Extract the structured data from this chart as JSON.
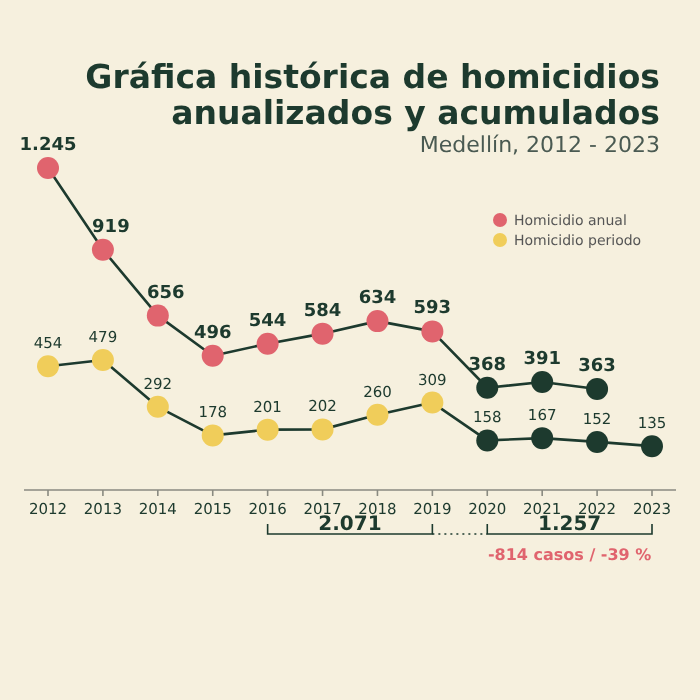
{
  "chart_data": {
    "type": "line",
    "title": "Gráfica histórica de homicidios anualizados y acumulados",
    "subtitle": "Medellín, 2012 - 2023",
    "categories": [
      "2012",
      "2013",
      "2014",
      "2015",
      "2016",
      "2017",
      "2018",
      "2019",
      "2020",
      "2021",
      "2022",
      "2023"
    ],
    "series": [
      {
        "type": "line",
        "marker": "none",
        "color": "#1d3a2e",
        "values": [
          1245,
          919,
          656,
          496,
          544,
          584,
          634,
          593,
          368,
          391,
          363,
          null
        ]
      },
      {
        "type": "line",
        "marker": "none",
        "color": "#1d3a2e",
        "values": [
          454,
          479,
          292,
          178,
          201,
          202,
          260,
          309,
          158,
          167,
          152,
          135
        ]
      },
      {
        "type": "scatter",
        "marker": "circle",
        "name": "Homicidio anual",
        "color": "#e0646e",
        "colors": [
          "#e0646e",
          "#e0646e",
          "#e0646e",
          "#e0646e",
          "#e0646e",
          "#e0646e",
          "#e0646e",
          "#e0646e",
          "#1d3a2e",
          "#1d3a2e",
          "#1d3a2e",
          null
        ],
        "values": [
          1245,
          919,
          656,
          496,
          544,
          584,
          634,
          593,
          368,
          391,
          363,
          null
        ],
        "value_labels": [
          "1.245",
          "919",
          "656",
          "496",
          "544",
          "584",
          "634",
          "593",
          "368",
          "391",
          "363",
          null
        ]
      },
      {
        "type": "scatter",
        "marker": "circle",
        "name": "Homicidio periodo",
        "color": "#f0cd5a",
        "colors": [
          "#f0cd5a",
          "#f0cd5a",
          "#f0cd5a",
          "#f0cd5a",
          "#f0cd5a",
          "#f0cd5a",
          "#f0cd5a",
          "#f0cd5a",
          "#1d3a2e",
          "#1d3a2e",
          "#1d3a2e",
          "#1d3a2e"
        ],
        "values": [
          454,
          479,
          292,
          178,
          201,
          202,
          260,
          309,
          158,
          167,
          152,
          135
        ],
        "value_labels": [
          "454",
          "479",
          "292",
          "178",
          "201",
          "202",
          "260",
          "309",
          "158",
          "167",
          "152",
          "135"
        ]
      }
    ],
    "tick_labels": "x",
    "legend": "right",
    "line_style": "solid",
    "annotations": [
      "2.071",
      "1.257",
      "-814 casos / -39 %"
    ]
  }
}
